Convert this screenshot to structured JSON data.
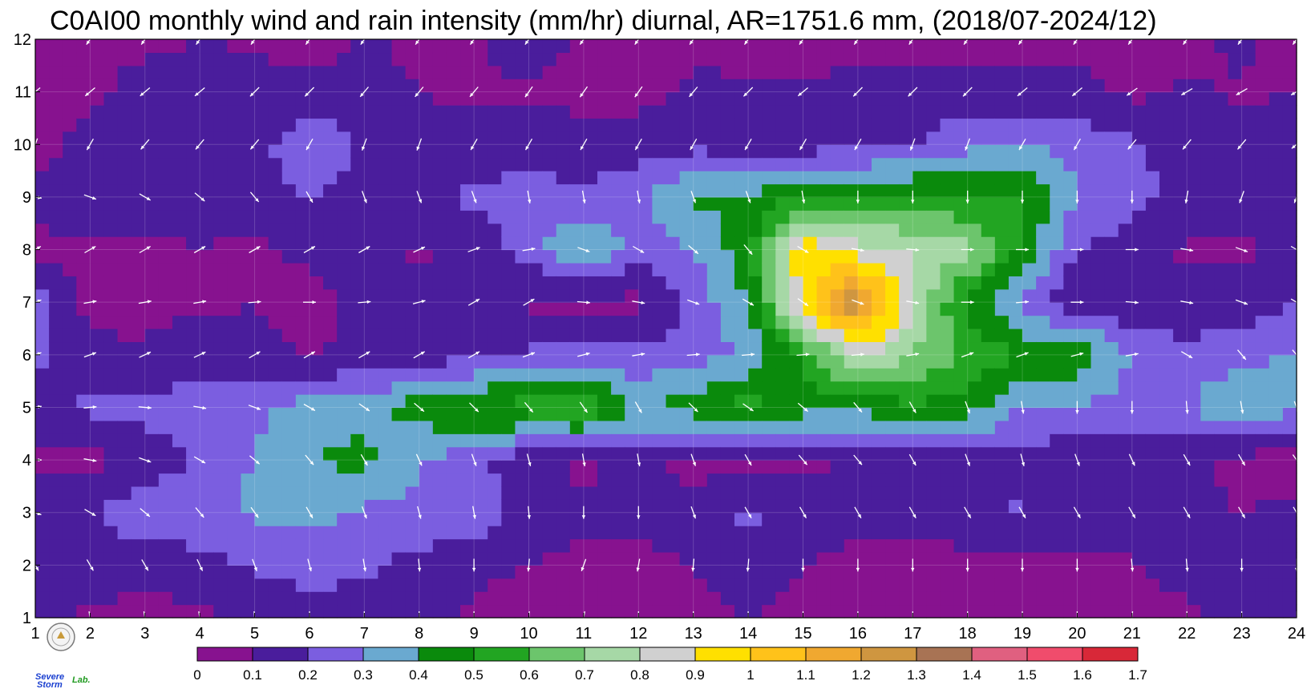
{
  "chart_data": {
    "type": "heatmap",
    "title": "C0AI00 monthly wind and rain intensity (mm/hr) diurnal, AR=1751.6 mm, (2018/07-2024/12)",
    "xlabel": "",
    "ylabel": "",
    "x_ticks": [
      "1",
      "2",
      "3",
      "4",
      "5",
      "6",
      "7",
      "8",
      "9",
      "10",
      "11",
      "12",
      "13",
      "14",
      "15",
      "16",
      "17",
      "18",
      "19",
      "20",
      "21",
      "22",
      "23",
      "24"
    ],
    "y_ticks": [
      "1",
      "2",
      "3",
      "4",
      "5",
      "6",
      "7",
      "8",
      "9",
      "10",
      "11",
      "12"
    ],
    "xlim": [
      1,
      24
    ],
    "ylim": [
      1,
      12
    ],
    "grid": true,
    "colorbar": {
      "levels": [
        0,
        0.1,
        0.2,
        0.3,
        0.4,
        0.5,
        0.6,
        0.7,
        0.8,
        0.9,
        1,
        1.1,
        1.2,
        1.3,
        1.4,
        1.5,
        1.6,
        1.7
      ],
      "labels": [
        "0",
        "0.1",
        "0.2",
        "0.3",
        "0.4",
        "0.5",
        "0.6",
        "0.7",
        "0.8",
        "0.9",
        "1",
        "1.1",
        "1.2",
        "1.3",
        "1.4",
        "1.5",
        "1.6",
        "1.7"
      ],
      "colors": [
        "#87128f",
        "#4a1d9c",
        "#7b5ee0",
        "#6aa9d0",
        "#0a8a0c",
        "#22a522",
        "#6cc56c",
        "#a6d8a6",
        "#d0d0d0",
        "#ffe000",
        "#ffc21a",
        "#f0a830",
        "#cf9640",
        "#a87354",
        "#e06080",
        "#f04c6c",
        "#d82838"
      ]
    },
    "rows": [
      {
        "y": 1,
        "values": [
          0.13,
          0.08,
          0.05,
          0.08,
          0.12,
          0.15,
          0.15,
          0.12,
          0.08,
          0.04,
          0.03,
          0.04,
          0.07,
          0.1,
          0.08,
          0.05,
          0.04,
          0.04,
          0.05,
          0.06,
          0.08,
          0.08,
          0.12,
          0.1
        ]
      },
      {
        "y": 2,
        "values": [
          0.1,
          0.17,
          0.14,
          0.16,
          0.21,
          0.24,
          0.22,
          0.17,
          0.13,
          0.1,
          0.07,
          0.06,
          0.11,
          0.13,
          0.1,
          0.07,
          0.05,
          0.05,
          0.06,
          0.08,
          0.09,
          0.13,
          0.16,
          0.11
        ]
      },
      {
        "y": 3,
        "values": [
          0.17,
          0.19,
          0.26,
          0.28,
          0.31,
          0.34,
          0.28,
          0.26,
          0.26,
          0.17,
          0.12,
          0.14,
          0.15,
          0.22,
          0.18,
          0.13,
          0.15,
          0.2,
          0.21,
          0.16,
          0.14,
          0.13,
          0.1,
          0.12
        ]
      },
      {
        "y": 4,
        "values": [
          0.06,
          0.07,
          0.14,
          0.21,
          0.31,
          0.4,
          0.43,
          0.31,
          0.22,
          0.14,
          0.07,
          0.14,
          0.06,
          0.07,
          0.07,
          0.11,
          0.13,
          0.16,
          0.15,
          0.14,
          0.13,
          0.13,
          0.06,
          0.06
        ]
      },
      {
        "y": 5,
        "values": [
          0.18,
          0.22,
          0.24,
          0.23,
          0.27,
          0.35,
          0.36,
          0.45,
          0.52,
          0.55,
          0.6,
          0.4,
          0.45,
          0.55,
          0.45,
          0.42,
          0.48,
          0.45,
          0.3,
          0.28,
          0.27,
          0.29,
          0.42,
          0.3
        ]
      },
      {
        "y": 6,
        "values": [
          0.22,
          0.13,
          0.12,
          0.17,
          0.13,
          0.09,
          0.13,
          0.16,
          0.16,
          0.22,
          0.23,
          0.22,
          0.25,
          0.32,
          0.5,
          0.85,
          0.7,
          0.6,
          0.48,
          0.5,
          0.28,
          0.24,
          0.26,
          0.32
        ]
      },
      {
        "y": 7,
        "values": [
          0.24,
          0.06,
          0.06,
          0.08,
          0.1,
          0.05,
          0.13,
          0.17,
          0.13,
          0.08,
          0.07,
          0.07,
          0.24,
          0.4,
          0.95,
          1.3,
          0.8,
          0.45,
          0.28,
          0.11,
          0.13,
          0.12,
          0.15,
          0.19
        ]
      },
      {
        "y": 8,
        "values": [
          0.08,
          0.08,
          0.08,
          0.1,
          0.08,
          0.13,
          0.15,
          0.08,
          0.14,
          0.25,
          0.42,
          0.25,
          0.3,
          0.46,
          0.98,
          0.85,
          0.8,
          0.75,
          0.48,
          0.2,
          0.14,
          0.09,
          0.08,
          0.12
        ]
      },
      {
        "y": 9,
        "values": [
          0.13,
          0.14,
          0.15,
          0.14,
          0.17,
          0.2,
          0.16,
          0.19,
          0.22,
          0.24,
          0.22,
          0.28,
          0.43,
          0.4,
          0.5,
          0.48,
          0.52,
          0.5,
          0.52,
          0.3,
          0.24,
          0.16,
          0.14,
          0.22
        ]
      },
      {
        "y": 10,
        "values": [
          0.06,
          0.14,
          0.1,
          0.18,
          0.16,
          0.29,
          0.18,
          0.13,
          0.14,
          0.15,
          0.15,
          0.15,
          0.17,
          0.16,
          0.15,
          0.18,
          0.2,
          0.28,
          0.31,
          0.27,
          0.21,
          0.15,
          0.14,
          0.12
        ]
      },
      {
        "y": 11,
        "values": [
          0.07,
          0.08,
          0.14,
          0.14,
          0.13,
          0.12,
          0.12,
          0.1,
          0.08,
          0.09,
          0.06,
          0.07,
          0.12,
          0.11,
          0.11,
          0.12,
          0.12,
          0.13,
          0.13,
          0.12,
          0.08,
          0.11,
          0.09,
          0.1
        ]
      },
      {
        "y": 12,
        "values": [
          0.07,
          0.07,
          0.08,
          0.1,
          0.09,
          0.07,
          0.11,
          0.08,
          0.09,
          0.15,
          0.08,
          0.06,
          0.07,
          0.08,
          0.07,
          0.08,
          0.07,
          0.07,
          0.08,
          0.08,
          0.09,
          0.07,
          0.12,
          0.06
        ]
      }
    ],
    "wind_vectors": {
      "note_units": "direction in compass degrees toward which wind blows",
      "rows": [
        {
          "y": 1,
          "dir": [
            170,
            170,
            170,
            170,
            175,
            180,
            180,
            180,
            180,
            185,
            190,
            180,
            180,
            180,
            180,
            180,
            180,
            180,
            180,
            180,
            185,
            180,
            180,
            180
          ]
        },
        {
          "y": 2,
          "dir": [
            150,
            150,
            150,
            155,
            160,
            165,
            170,
            175,
            180,
            185,
            200,
            190,
            185,
            185,
            180,
            180,
            180,
            180,
            180,
            180,
            175,
            175,
            180,
            180
          ]
        },
        {
          "y": 3,
          "dir": [
            110,
            120,
            130,
            140,
            145,
            150,
            160,
            165,
            170,
            175,
            180,
            180,
            160,
            150,
            150,
            150,
            150,
            150,
            150,
            150,
            150,
            150,
            150,
            150
          ]
        },
        {
          "y": 4,
          "dir": [
            90,
            100,
            110,
            120,
            130,
            140,
            150,
            155,
            160,
            165,
            170,
            170,
            160,
            150,
            140,
            140,
            150,
            160,
            165,
            160,
            155,
            150,
            150,
            145
          ]
        },
        {
          "y": 5,
          "dir": [
            80,
            85,
            95,
            100,
            110,
            120,
            125,
            130,
            135,
            140,
            145,
            150,
            135,
            125,
            130,
            140,
            150,
            160,
            170,
            180,
            180,
            175,
            170,
            160
          ]
        },
        {
          "y": 6,
          "dir": [
            70,
            70,
            65,
            65,
            60,
            60,
            60,
            60,
            60,
            70,
            75,
            80,
            85,
            85,
            85,
            85,
            80,
            70,
            70,
            75,
            80,
            120,
            140,
            140
          ]
        },
        {
          "y": 7,
          "dir": [
            70,
            80,
            80,
            80,
            85,
            90,
            85,
            75,
            60,
            60,
            95,
            100,
            110,
            120,
            125,
            110,
            100,
            90,
            85,
            90,
            95,
            100,
            110,
            120
          ]
        },
        {
          "y": 8,
          "dir": [
            60,
            60,
            60,
            60,
            60,
            60,
            60,
            65,
            70,
            80,
            110,
            120,
            130,
            140,
            120,
            100,
            95,
            90,
            90,
            90,
            90,
            100,
            110,
            120
          ]
        },
        {
          "y": 9,
          "dir": [
            100,
            110,
            120,
            130,
            140,
            150,
            160,
            160,
            160,
            170,
            170,
            170,
            160,
            160,
            170,
            180,
            180,
            180,
            180,
            180,
            180,
            190,
            200,
            200
          ]
        },
        {
          "y": 10,
          "dir": [
            200,
            210,
            220,
            220,
            220,
            210,
            200,
            200,
            210,
            210,
            210,
            210,
            210,
            210,
            210,
            210,
            200,
            200,
            210,
            210,
            220,
            220,
            220,
            230
          ]
        },
        {
          "y": 11,
          "dir": [
            230,
            230,
            230,
            230,
            225,
            225,
            220,
            220,
            220,
            215,
            215,
            215,
            220,
            225,
            230,
            225,
            225,
            225,
            230,
            230,
            235,
            240,
            240,
            240
          ]
        },
        {
          "y": 12,
          "dir": [
            215,
            215,
            215,
            215,
            215,
            215,
            215,
            215,
            215,
            215,
            215,
            215,
            215,
            215,
            215,
            215,
            215,
            215,
            215,
            215,
            215,
            215,
            215,
            215
          ]
        }
      ]
    }
  },
  "logo": {
    "text_severe": "Severe",
    "text_storm": "Storm",
    "text_lab": "Lab."
  }
}
